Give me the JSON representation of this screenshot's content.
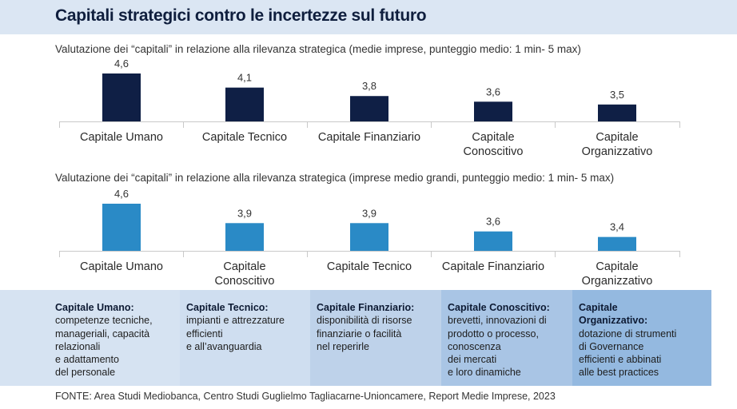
{
  "title": "Capitali strategici contro le incertezze sul futuro",
  "chart_data": [
    {
      "type": "bar",
      "title": "Valutazione dei “capitali” in relazione alla rilevanza strategica (medie imprese, punteggio medio: 1 min- 5 max)",
      "categories": [
        "Capitale Umano",
        "Capitale Tecnico",
        "Capitale Finanziario",
        "Capitale\nConoscitivo",
        "Capitale\nOrganizzativo"
      ],
      "values": [
        4.6,
        4.1,
        3.8,
        3.6,
        3.5
      ],
      "value_labels": [
        "4,6",
        "4,1",
        "3,8",
        "3,6",
        "3,5"
      ],
      "ylim": [
        2.9,
        4.6
      ],
      "color": "#0f1f45",
      "grid": false
    },
    {
      "type": "bar",
      "title": "Valutazione dei “capitali” in relazione alla rilevanza strategica (imprese medio grandi, punteggio medio: 1 min- 5 max)",
      "categories": [
        "Capitale Umano",
        "Capitale\nConoscitivo",
        "Capitale Tecnico",
        "Capitale Finanziario",
        "Capitale\nOrganizzativo"
      ],
      "values": [
        4.6,
        3.9,
        3.9,
        3.6,
        3.4
      ],
      "value_labels": [
        "4,6",
        "3,9",
        "3,9",
        "3,6",
        "3,4"
      ],
      "ylim": [
        2.9,
        4.6
      ],
      "color": "#2a8ac6",
      "grid": false
    }
  ],
  "definitions": [
    {
      "heading": "Capitale Umano:",
      "text": "competenze tecniche,\nmanageriali, capacità\nrelazionali\ne adattamento\ndel personale"
    },
    {
      "heading": "Capitale Tecnico:",
      "text": "impianti e attrezzature\nefficienti\ne all’avanguardia"
    },
    {
      "heading": "Capitale Finanziario:",
      "text": "disponibilità di risorse\nfinanziarie o facilità\nnel reperirle"
    },
    {
      "heading": "Capitale Conoscitivo:",
      "text": "brevetti, innovazioni di\nprodotto o processo,\nconoscenza\ndei mercati\ne loro dinamiche"
    },
    {
      "heading": "Capitale\nOrganizzativo:",
      "text": "dotazione di strumenti\ndi Governance\nefficienti e abbinati\nalle best practices"
    }
  ],
  "source": "FONTE: Area Studi Mediobanca, Centro Studi Guglielmo Tagliacarne-Unioncamere, Report Medie Imprese, 2023"
}
